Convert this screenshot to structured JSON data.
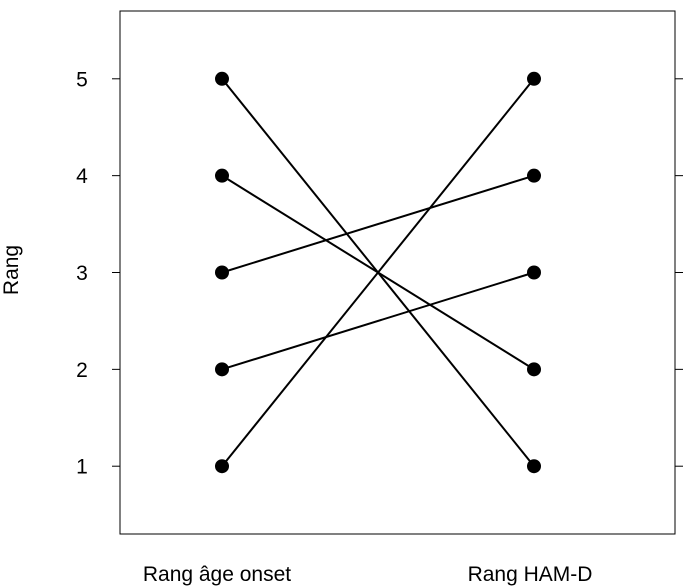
{
  "chart_data": {
    "type": "slope",
    "categories": [
      "Rang âge onset",
      "Rang HAM-D"
    ],
    "ylabel": "Rang",
    "ylim": [
      0.3,
      5.7
    ],
    "yticks": [
      1,
      2,
      3,
      4,
      5
    ],
    "right_axis_ticks": [
      1,
      2,
      3,
      4,
      5
    ],
    "grid": false,
    "pairs": [
      {
        "left": 5,
        "right": 1
      },
      {
        "left": 4,
        "right": 2
      },
      {
        "left": 3,
        "right": 4
      },
      {
        "left": 2,
        "right": 3
      },
      {
        "left": 1,
        "right": 5
      }
    ],
    "colors": {
      "line": "#000000",
      "point": "#000000",
      "frame": "#000000"
    }
  }
}
